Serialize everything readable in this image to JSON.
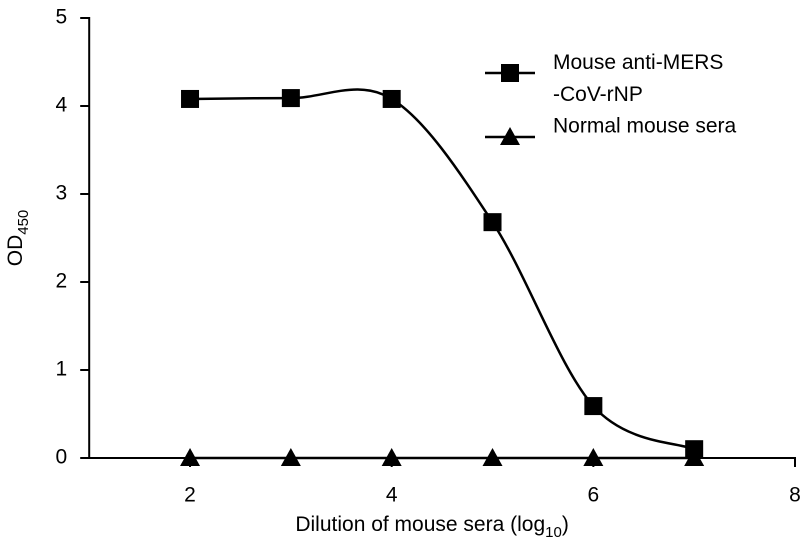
{
  "chart_data": {
    "type": "line",
    "xlabel": [
      "Dilution of mouse sera (log",
      "10",
      ")"
    ],
    "ylabel": [
      "OD",
      "450"
    ],
    "series": [
      {
        "name": "Mouse anti-MERS\n-CoV-rNP",
        "color": "#000000",
        "marker": "square",
        "smooth": true,
        "x": [
          2,
          3,
          4,
          5,
          6,
          7
        ],
        "values": [
          4.08,
          4.09,
          4.08,
          2.68,
          0.59,
          0.1
        ]
      },
      {
        "name": "Normal mouse sera",
        "color": "#000000",
        "marker": "triangle",
        "smooth": false,
        "x": [
          2,
          3,
          4,
          5,
          6,
          7
        ],
        "values": [
          0,
          0,
          0,
          0,
          0,
          0
        ]
      }
    ],
    "xlim": [
      1,
      8
    ],
    "xticks": [
      2,
      4,
      6,
      8
    ],
    "ylim": [
      0,
      5
    ],
    "yticks": [
      0,
      1,
      2,
      3,
      4,
      5
    ],
    "grid": false,
    "legend": "upper right"
  }
}
